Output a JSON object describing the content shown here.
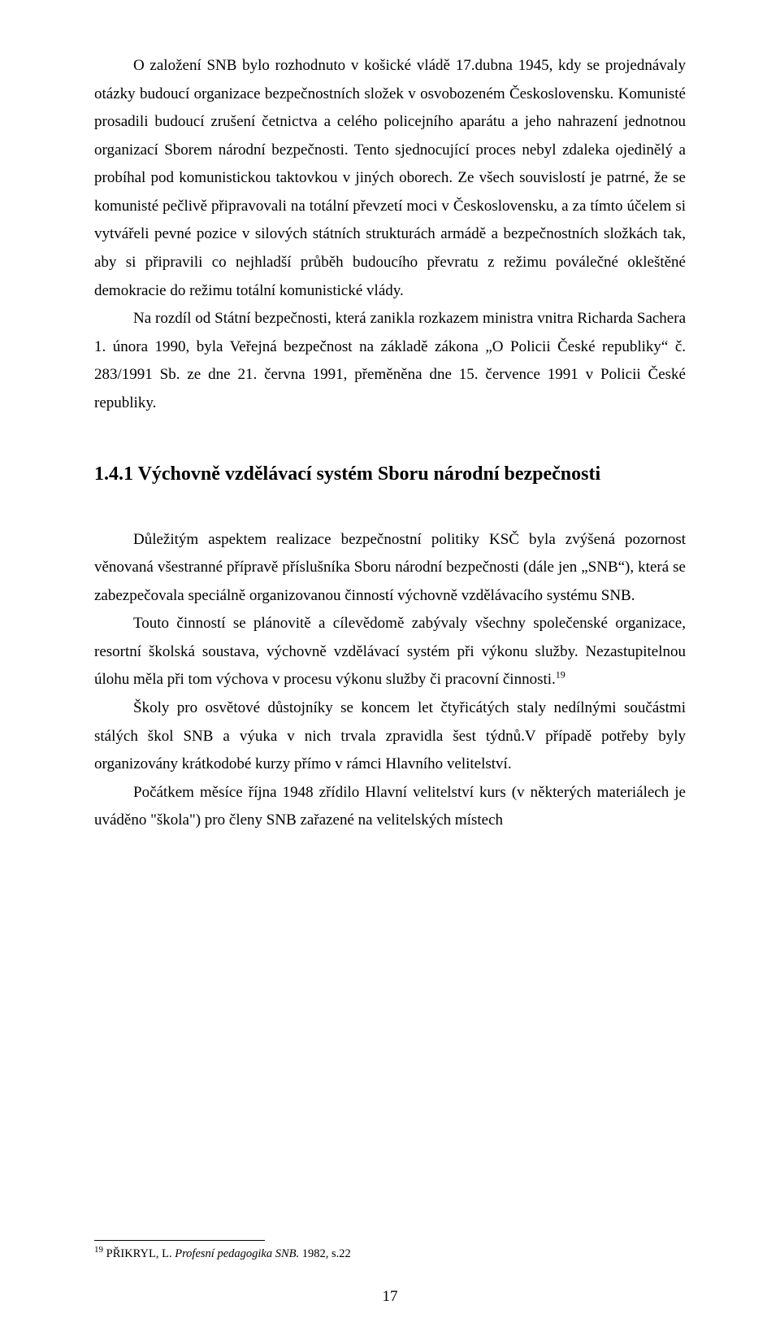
{
  "paragraphs": {
    "p1": "O založení SNB bylo rozhodnuto v košické vládě 17.dubna 1945, kdy se projednávaly otázky budoucí organizace bezpečnostních složek v osvobozeném Československu. Komunisté prosadili budoucí zrušení četnictva a celého policejního aparátu a jeho nahrazení jednotnou organizací Sborem národní bezpečnosti. Tento sjednocující proces nebyl zdaleka ojedinělý a probíhal pod komunistickou taktovkou v jiných oborech. Ze všech souvislostí je patrné, že se komunisté pečlivě připravovali na totální převzetí moci v Československu, a za tímto účelem si vytvářeli pevné pozice v silových státních strukturách armádě a bezpečnostních složkách tak, aby si připravili co nejhladší průběh budoucího převratu z režimu poválečné okleštěné demokracie  do režimu totální komunistické vlády.",
    "p2": "Na rozdíl od Státní bezpečnosti, která zanikla rozkazem ministra vnitra Richarda Sachera 1. února 1990, byla Veřejná bezpečnost na základě zákona „O Policii České republiky“ č. 283/1991 Sb. ze dne 21. června 1991, přeměněna dne 15. července 1991 v Policii České republiky.",
    "p3": "Důležitým aspektem realizace bezpečnostní politiky KSČ byla zvýšená pozornost věnovaná všestranné přípravě příslušníka Sboru národní bezpečnosti (dále jen „SNB“), která se zabezpečovala speciálně organizovanou činností výchovně vzdělávacího systému SNB.",
    "p4_a": "Touto činností se plánovitě a cílevědomě zabývaly všechny společenské organizace, resortní školská soustava, výchovně vzdělávací systém při výkonu služby. Nezastupitelnou úlohu měla při tom výchova v procesu výkonu služby či pracovní činnosti.",
    "p4_ref": "19",
    "p5": "Školy pro osvětové důstojníky se koncem let čtyřicátých staly nedílnými součástmi stálých škol SNB a výuka v nich trvala zpravidla šest týdnů.V případě potřeby byly organizovány krátkodobé kurzy přímo v rámci Hlavního velitelství.",
    "p6": "Počátkem měsíce října 1948 zřídilo Hlavní velitelství kurs (v některých materiálech je uváděno \"škola\") pro členy SNB zařazené na velitelských místech"
  },
  "heading": "1.4.1  Výchovně vzdělávací systém Sboru národní bezpečnosti",
  "footnote": {
    "ref": "19",
    "text_prefix": "  PŘIKRYL, L. ",
    "text_italic": "Profesní pedagogika SNB.",
    "text_suffix": " 1982, s.22"
  },
  "page_number": "17"
}
